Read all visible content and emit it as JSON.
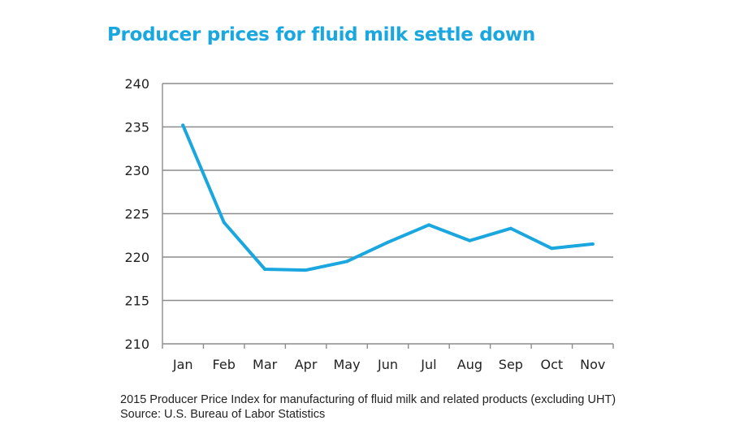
{
  "colors": {
    "title": "#1aa6de",
    "series": "#1aa6de",
    "grid": "#8c8c8c",
    "text": "#222222"
  },
  "caption": "2015 Producer Price Index for manufacturing of fluid milk and related products (excluding UHT) Source: U.S. Bureau of Labor Statistics",
  "chart_data": {
    "type": "line",
    "title": "Producer prices for fluid milk settle down",
    "xlabel": "",
    "ylabel": "",
    "categories": [
      "Jan",
      "Feb",
      "Mar",
      "Apr",
      "May",
      "Jun",
      "Jul",
      "Aug",
      "Sep",
      "Oct",
      "Nov"
    ],
    "series": [
      {
        "values": [
          235.2,
          224.0,
          218.6,
          218.5,
          219.5,
          221.7,
          223.7,
          221.9,
          223.3,
          221.0,
          221.5
        ]
      }
    ],
    "ylim": [
      210,
      240
    ],
    "yticks": [
      210,
      215,
      220,
      225,
      230,
      235,
      240
    ],
    "grid": true,
    "legend": "none"
  }
}
